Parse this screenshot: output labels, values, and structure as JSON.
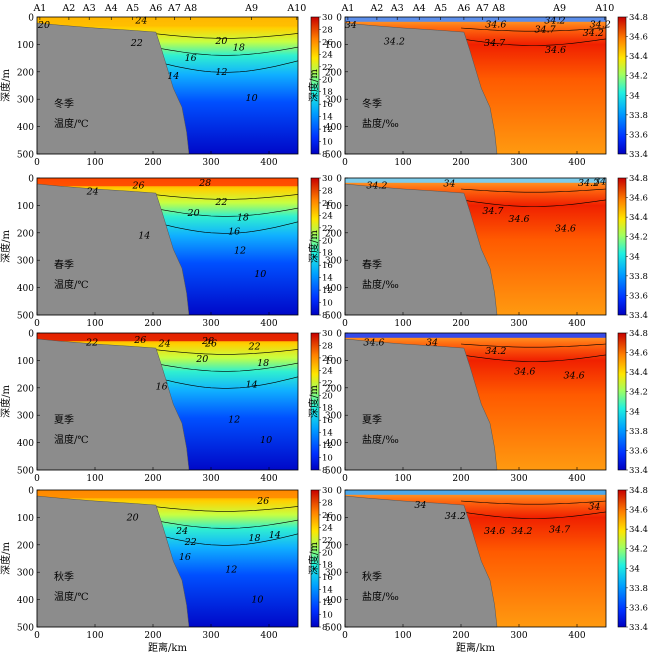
{
  "chart_data": {
    "type": "heatmap",
    "x_axis": {
      "label": "距离/km",
      "range": [
        0,
        450
      ],
      "ticks": [
        0,
        100,
        200,
        300,
        400
      ]
    },
    "y_axis": {
      "label": "深度/m",
      "range": [
        500,
        0
      ],
      "ticks": [
        0,
        100,
        200,
        300,
        400,
        500
      ]
    },
    "stations": [
      {
        "name": "A1",
        "km": 5
      },
      {
        "name": "A2",
        "km": 55
      },
      {
        "name": "A3",
        "km": 90
      },
      {
        "name": "A4",
        "km": 128
      },
      {
        "name": "A5",
        "km": 165
      },
      {
        "name": "A6",
        "km": 205
      },
      {
        "name": "A7",
        "km": 237
      },
      {
        "name": "A8",
        "km": 265
      },
      {
        "name": "A9",
        "km": 370
      },
      {
        "name": "A10",
        "km": 448
      }
    ],
    "bathymetry_km_depth": [
      [
        0,
        22
      ],
      [
        40,
        30
      ],
      [
        100,
        40
      ],
      [
        160,
        48
      ],
      [
        205,
        55
      ],
      [
        215,
        120
      ],
      [
        235,
        260
      ],
      [
        250,
        330
      ],
      [
        258,
        420
      ],
      [
        262,
        500
      ]
    ],
    "temperature": {
      "colorbar_ticks": [
        8,
        10,
        12,
        14,
        16,
        18,
        20,
        22,
        24,
        26,
        28,
        30
      ],
      "colorbar_range": [
        8,
        30
      ],
      "unit_label": "温度/℃",
      "panels": [
        {
          "season": "冬季",
          "contour_labels": [
            "20",
            "24",
            "22",
            "20",
            "18",
            "16",
            "14",
            "12",
            "10"
          ]
        },
        {
          "season": "春季",
          "contour_labels": [
            "26",
            "28",
            "24",
            "22",
            "20",
            "18",
            "16",
            "14",
            "12",
            "10"
          ]
        },
        {
          "season": "夏季",
          "contour_labels": [
            "22",
            "26",
            "24",
            "28",
            "26",
            "22",
            "20",
            "18",
            "16",
            "14",
            "12",
            "10"
          ]
        },
        {
          "season": "秋季",
          "contour_labels": [
            "26",
            "20",
            "24",
            "22",
            "18",
            "16",
            "12",
            "14",
            "10"
          ]
        }
      ]
    },
    "salinity": {
      "colorbar_ticks": [
        33.4,
        33.6,
        33.8,
        34,
        34.2,
        34.4,
        34.6,
        34.8
      ],
      "colorbar_range": [
        33.4,
        34.8
      ],
      "unit_label": "盐度/‰",
      "panels": [
        {
          "season": "冬季",
          "contour_labels": [
            "34",
            "34.2",
            "34.6",
            "34.2",
            "34.2",
            "34.7",
            "34.7",
            "34.6",
            "34.2"
          ]
        },
        {
          "season": "春季",
          "contour_labels": [
            "34.2",
            "34",
            "34.2",
            "34.7",
            "34.6",
            "34.6",
            "34"
          ]
        },
        {
          "season": "夏季",
          "contour_labels": [
            "34.6",
            "34",
            "34.2",
            "34.6",
            "34.6"
          ]
        },
        {
          "season": "秋季",
          "contour_labels": [
            "34",
            "34.2",
            "34.6",
            "34.2",
            "34.7",
            "34"
          ]
        }
      ]
    }
  }
}
